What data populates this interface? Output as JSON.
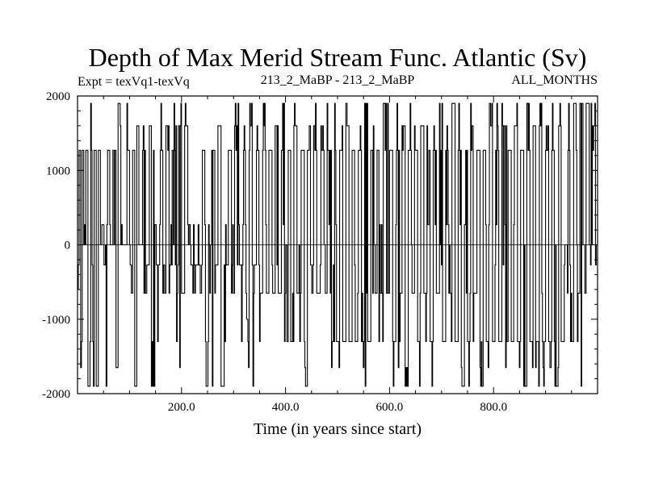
{
  "chart_data": {
    "type": "line",
    "title": "Depth of Max Merid Stream Func. Atlantic (Sv)",
    "subtitle_left": "Expt = texVq1-texVq",
    "subtitle_center": "213_2_MaBP - 213_2_MaBP",
    "subtitle_right": "ALL_MONTHS",
    "xlabel": "Time (in years since start)",
    "ylabel": "",
    "xlim": [
      0,
      1000
    ],
    "ylim": [
      -2000,
      2000
    ],
    "x_ticks": [
      200,
      400,
      600,
      800
    ],
    "x_tick_labels": [
      "200.0",
      "400.0",
      "600.0",
      "800.0"
    ],
    "y_ticks": [
      -2000,
      -1000,
      0,
      1000,
      2000
    ],
    "y_tick_labels": [
      "-2000",
      "-1000",
      "0",
      "1000",
      "2000"
    ],
    "zero_line": true,
    "series": [
      {
        "name": "Depth of Max Merid Stream Func. Atlantic",
        "levels": [
          -1900,
          -1650,
          -1300,
          -650,
          -270,
          0,
          270,
          1270,
          1600,
          1900
        ],
        "segments": [
          [
            0,
            -600
          ],
          [
            3,
            1270
          ],
          [
            6,
            -1650
          ],
          [
            9,
            1270
          ],
          [
            12,
            0
          ],
          [
            16,
            1270
          ],
          [
            20,
            -1900
          ],
          [
            24,
            1270
          ],
          [
            28,
            -1300
          ],
          [
            32,
            1270
          ],
          [
            36,
            -1900
          ],
          [
            40,
            1270
          ],
          [
            44,
            0
          ],
          [
            55,
            1270
          ],
          [
            62,
            0
          ],
          [
            68,
            1270
          ],
          [
            74,
            -1650
          ],
          [
            78,
            1900
          ],
          [
            82,
            0
          ],
          [
            95,
            1270
          ],
          [
            100,
            -650
          ],
          [
            106,
            1270
          ],
          [
            110,
            -1900
          ],
          [
            114,
            1600
          ],
          [
            118,
            0
          ],
          [
            125,
            1270
          ],
          [
            132,
            -270
          ],
          [
            138,
            1600
          ],
          [
            142,
            -1900
          ],
          [
            146,
            1270
          ],
          [
            150,
            -270
          ],
          [
            158,
            1270
          ],
          [
            164,
            -650
          ],
          [
            170,
            1600
          ],
          [
            176,
            -270
          ],
          [
            182,
            1270
          ],
          [
            188,
            -270
          ],
          [
            194,
            1600
          ],
          [
            200,
            -650
          ],
          [
            206,
            1600
          ],
          [
            212,
            0
          ],
          [
            218,
            -270
          ],
          [
            228,
            -270
          ],
          [
            240,
            1270
          ],
          [
            246,
            -1900
          ],
          [
            252,
            0
          ],
          [
            258,
            1270
          ],
          [
            264,
            -270
          ],
          [
            270,
            1600
          ],
          [
            276,
            -1900
          ],
          [
            282,
            -270
          ],
          [
            290,
            1270
          ],
          [
            296,
            -650
          ],
          [
            302,
            1600
          ],
          [
            310,
            -270
          ],
          [
            318,
            1270
          ],
          [
            324,
            -1000
          ],
          [
            330,
            1600
          ],
          [
            336,
            -270
          ],
          [
            344,
            1270
          ],
          [
            350,
            -650
          ],
          [
            356,
            1600
          ],
          [
            362,
            -650
          ],
          [
            368,
            1270
          ],
          [
            374,
            -650
          ],
          [
            380,
            1600
          ],
          [
            386,
            -650
          ],
          [
            392,
            1270
          ],
          [
            398,
            -650
          ],
          [
            404,
            1270
          ],
          [
            410,
            -1300
          ],
          [
            416,
            1600
          ],
          [
            422,
            -650
          ],
          [
            430,
            1270
          ],
          [
            436,
            -1900
          ],
          [
            442,
            1270
          ],
          [
            448,
            -650
          ],
          [
            454,
            1600
          ],
          [
            460,
            -650
          ],
          [
            468,
            1270
          ],
          [
            474,
            -650
          ],
          [
            480,
            1270
          ],
          [
            486,
            -1300
          ],
          [
            492,
            1270
          ],
          [
            498,
            -1300
          ],
          [
            504,
            1270
          ],
          [
            510,
            -1300
          ],
          [
            516,
            1600
          ],
          [
            522,
            -1300
          ],
          [
            528,
            1270
          ],
          [
            534,
            -1300
          ],
          [
            540,
            1270
          ],
          [
            546,
            -1300
          ],
          [
            552,
            1900
          ],
          [
            558,
            -1300
          ],
          [
            564,
            1270
          ],
          [
            570,
            -650
          ],
          [
            576,
            1270
          ],
          [
            582,
            -1300
          ],
          [
            588,
            1900
          ],
          [
            594,
            -650
          ],
          [
            600,
            1270
          ],
          [
            606,
            -1300
          ],
          [
            612,
            1270
          ],
          [
            618,
            -650
          ],
          [
            624,
            1600
          ],
          [
            630,
            -1900
          ],
          [
            636,
            1270
          ],
          [
            642,
            -650
          ],
          [
            648,
            1270
          ],
          [
            654,
            -1300
          ],
          [
            660,
            1600
          ],
          [
            666,
            -650
          ],
          [
            672,
            1270
          ],
          [
            678,
            -1300
          ],
          [
            684,
            1270
          ],
          [
            690,
            -650
          ],
          [
            696,
            1600
          ],
          [
            702,
            -1300
          ],
          [
            708,
            1270
          ],
          [
            714,
            -650
          ],
          [
            720,
            1900
          ],
          [
            726,
            -1300
          ],
          [
            732,
            1270
          ],
          [
            738,
            -1900
          ],
          [
            744,
            1270
          ],
          [
            750,
            -1300
          ],
          [
            756,
            1600
          ],
          [
            762,
            -650
          ],
          [
            768,
            1270
          ],
          [
            774,
            -1900
          ],
          [
            780,
            1270
          ],
          [
            786,
            -1300
          ],
          [
            792,
            1600
          ],
          [
            798,
            -1300
          ],
          [
            804,
            1270
          ],
          [
            810,
            -1300
          ],
          [
            816,
            1600
          ],
          [
            822,
            -1300
          ],
          [
            828,
            1270
          ],
          [
            834,
            -1300
          ],
          [
            840,
            1600
          ],
          [
            846,
            -1300
          ],
          [
            852,
            1270
          ],
          [
            858,
            -1900
          ],
          [
            864,
            1900
          ],
          [
            870,
            -1300
          ],
          [
            876,
            1600
          ],
          [
            882,
            -1300
          ],
          [
            888,
            1900
          ],
          [
            894,
            -1300
          ],
          [
            900,
            1270
          ],
          [
            906,
            -1300
          ],
          [
            912,
            1270
          ],
          [
            918,
            -1900
          ],
          [
            924,
            1600
          ],
          [
            930,
            -1300
          ],
          [
            936,
            0
          ],
          [
            942,
            1270
          ],
          [
            948,
            -1300
          ],
          [
            954,
            1900
          ],
          [
            960,
            -650
          ],
          [
            966,
            1900
          ],
          [
            972,
            0
          ],
          [
            978,
            1900
          ],
          [
            984,
            0
          ],
          [
            990,
            1600
          ],
          [
            996,
            0
          ],
          [
            1000,
            0
          ]
        ]
      }
    ]
  }
}
